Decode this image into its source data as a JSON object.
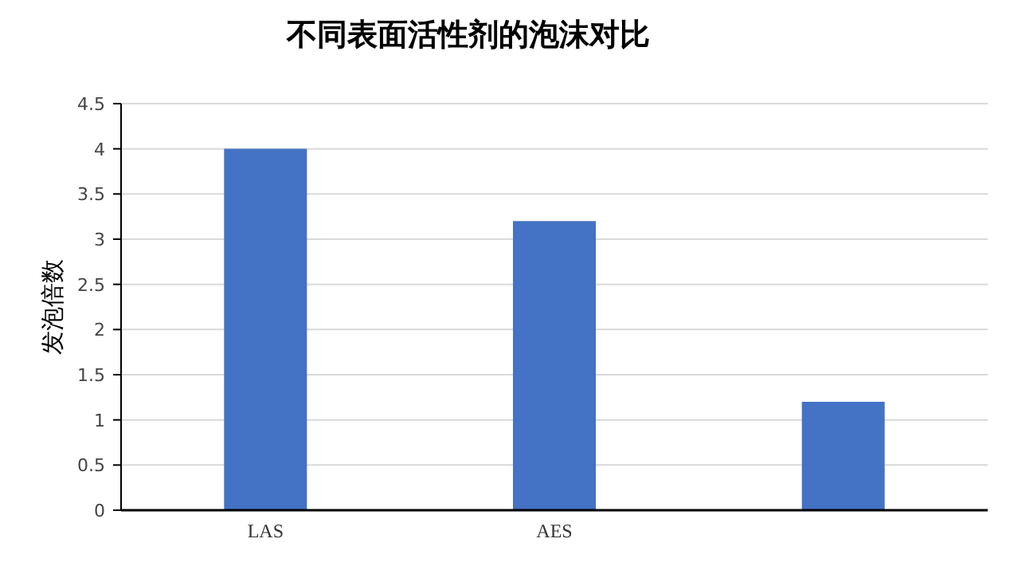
{
  "chart_data": {
    "type": "bar",
    "title": "不同表面活性剂的泡沫对比",
    "ylabel": "发泡倍数",
    "categories": [
      "LAS",
      "AES",
      null
    ],
    "values": [
      4,
      3.2,
      1.2
    ],
    "color": "#4472c4",
    "ylim": [
      0,
      4.5
    ],
    "yticks": [
      0,
      0.5,
      1,
      1.5,
      2,
      2.5,
      3,
      3.5,
      4,
      4.5
    ],
    "grid": "y"
  }
}
